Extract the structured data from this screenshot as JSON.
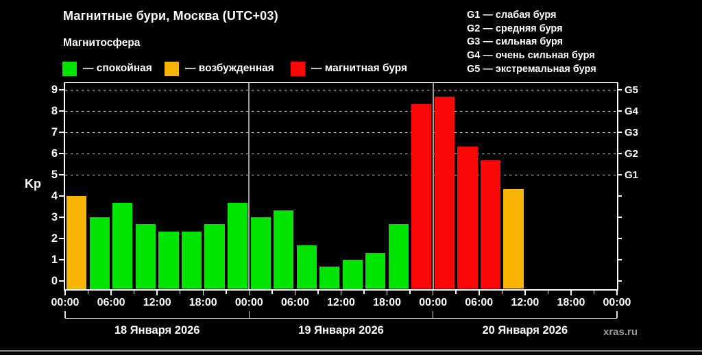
{
  "title": "Магнитные бури, Москва (UTC+03)",
  "subtitle": "Магнитосфера",
  "legend": {
    "items": [
      {
        "name": "quiet",
        "label": "— спокойная",
        "color": "#00e400"
      },
      {
        "name": "unsettled",
        "label": "— возбужденная",
        "color": "#f7b400"
      },
      {
        "name": "storm",
        "label": "— магнитная буря",
        "color": "#fa0707"
      }
    ]
  },
  "g_legend": [
    "G1 — слабая буря",
    "G2 — средняя буря",
    "G3 — сильная буря",
    "G4 — очень сильная буря",
    "G5 — экстремальная буря"
  ],
  "axis": {
    "y_label": "Kp",
    "y_ticks": [
      0,
      1,
      2,
      3,
      4,
      5,
      6,
      7,
      8,
      9
    ],
    "right_labels": [
      {
        "kp": 9,
        "label": "G5"
      },
      {
        "kp": 8,
        "label": "G4"
      },
      {
        "kp": 7,
        "label": "G3"
      },
      {
        "kp": 6,
        "label": "G2"
      },
      {
        "kp": 5,
        "label": "G1"
      }
    ],
    "x_time_labels": [
      "00:00",
      "06:00",
      "12:00",
      "18:00",
      "00:00",
      "06:00",
      "12:00",
      "18:00",
      "00:00",
      "06:00",
      "12:00",
      "18:00",
      "00:00"
    ],
    "date_labels": [
      "18 Января 2026",
      "19 Января 2026",
      "20 Января 2026"
    ]
  },
  "watermark": "xras.ru",
  "chart_data": {
    "type": "bar",
    "title": "Магнитные бури, Москва (UTC+03)",
    "ylabel": "Kp",
    "ylim": [
      0,
      9
    ],
    "grid_kp": [
      5,
      6,
      7,
      8,
      9
    ],
    "bar_interval_hours": 3,
    "color_rules": {
      "quiet_below": 4,
      "storm_at_or_above": 5
    },
    "days": [
      {
        "date": "18 Января 2026",
        "values": [
          4.0,
          3.0,
          3.67,
          2.67,
          2.33,
          2.33,
          2.67,
          3.67
        ]
      },
      {
        "date": "19 Января 2026",
        "values": [
          3.0,
          3.33,
          1.67,
          0.67,
          1.0,
          1.33,
          2.67,
          8.33
        ]
      },
      {
        "date": "20 Января 2026",
        "values": [
          8.67,
          6.33,
          5.67,
          4.33,
          null,
          null,
          null,
          null
        ]
      }
    ]
  }
}
